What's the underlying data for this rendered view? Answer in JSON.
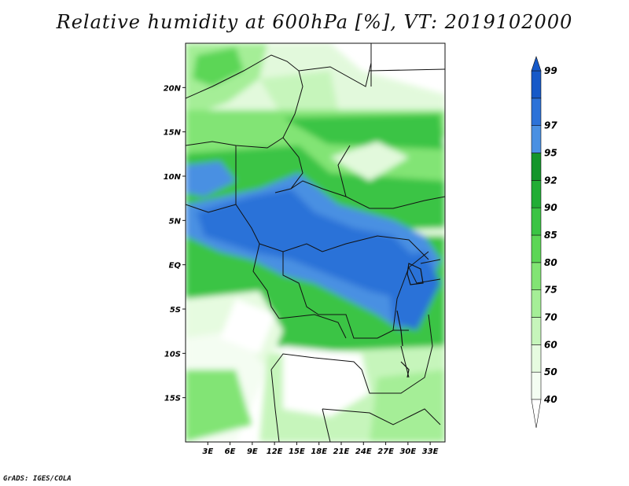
{
  "title": "Relative humidity at 600hPa [%], VT: 2019102000",
  "credit": "GrADS: IGES/COLA",
  "map": {
    "lat_labels": [
      "20N",
      "15N",
      "10N",
      "5N",
      "EQ",
      "5S",
      "10S",
      "15S"
    ],
    "lat_values": [
      20,
      15,
      10,
      5,
      0,
      -5,
      -10,
      -15
    ],
    "lon_labels": [
      "3E",
      "6E",
      "9E",
      "12E",
      "15E",
      "18E",
      "21E",
      "24E",
      "27E",
      "30E",
      "33E"
    ],
    "lon_values": [
      3,
      6,
      9,
      12,
      15,
      18,
      21,
      24,
      27,
      30,
      33
    ],
    "lat_range": [
      -20,
      25
    ],
    "lon_range": [
      0,
      35
    ]
  },
  "colorbar": {
    "labels": [
      "40",
      "50",
      "60",
      "70",
      "75",
      "80",
      "85",
      "90",
      "92",
      "95",
      "97",
      "99"
    ],
    "colors": [
      "#f4fdf2",
      "#e6fbe0",
      "#c6f5bb",
      "#a5ee97",
      "#82e474",
      "#5cd656",
      "#3bc444",
      "#22ad35",
      "#14952a",
      "#4a90e2",
      "#2c72d8",
      "#1659c8"
    ],
    "under_color": "#ffffff",
    "over_color": "#1659c8"
  }
}
